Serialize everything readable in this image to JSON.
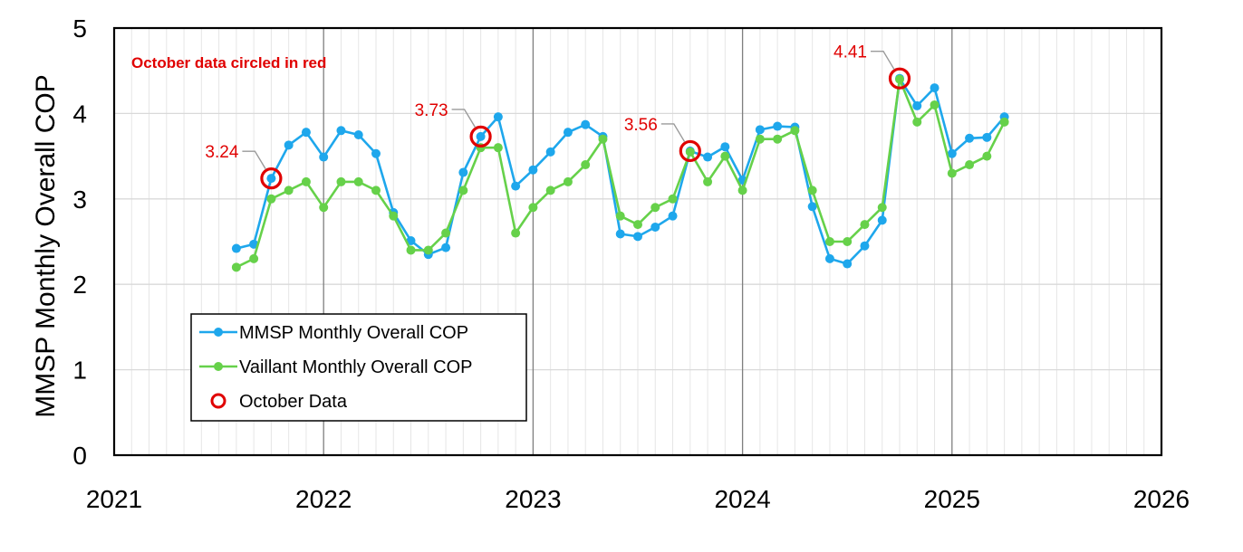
{
  "chart_data": {
    "type": "line",
    "ylabel": "MMSP Monthly Overall COP",
    "xlabel": "",
    "xlim": [
      2021,
      2026
    ],
    "ylim": [
      0,
      5
    ],
    "x_ticks": [
      "2021",
      "2022",
      "2023",
      "2024",
      "2025",
      "2026"
    ],
    "y_ticks": [
      "0",
      "1",
      "2",
      "3",
      "4",
      "5"
    ],
    "grid": "on",
    "legend_position": "bottom-left",
    "note": "October data circled in red",
    "colors": {
      "mmsp": "#1ea7ec",
      "vaillant": "#66d14a",
      "october": "#e00000"
    },
    "series": [
      {
        "name": "MMSP Monthly Overall COP",
        "points": [
          [
            "2021-08",
            2.42
          ],
          [
            "2021-09",
            2.47
          ],
          [
            "2021-10",
            3.24
          ],
          [
            "2021-11",
            3.63
          ],
          [
            "2021-12",
            3.78
          ],
          [
            "2022-01",
            3.49
          ],
          [
            "2022-02",
            3.8
          ],
          [
            "2022-03",
            3.75
          ],
          [
            "2022-04",
            3.53
          ],
          [
            "2022-05",
            2.84
          ],
          [
            "2022-06",
            2.51
          ],
          [
            "2022-07",
            2.35
          ],
          [
            "2022-08",
            2.43
          ],
          [
            "2022-09",
            3.31
          ],
          [
            "2022-10",
            3.73
          ],
          [
            "2022-11",
            3.96
          ],
          [
            "2022-12",
            3.15
          ],
          [
            "2023-01",
            3.34
          ],
          [
            "2023-02",
            3.55
          ],
          [
            "2023-03",
            3.78
          ],
          [
            "2023-04",
            3.87
          ],
          [
            "2023-05",
            3.73
          ],
          [
            "2023-06",
            2.59
          ],
          [
            "2023-07",
            2.56
          ],
          [
            "2023-08",
            2.67
          ],
          [
            "2023-09",
            2.8
          ],
          [
            "2023-10",
            3.56
          ],
          [
            "2023-11",
            3.49
          ],
          [
            "2023-12",
            3.61
          ],
          [
            "2024-01",
            3.22
          ],
          [
            "2024-02",
            3.81
          ],
          [
            "2024-03",
            3.85
          ],
          [
            "2024-04",
            3.84
          ],
          [
            "2024-05",
            2.91
          ],
          [
            "2024-06",
            2.3
          ],
          [
            "2024-07",
            2.24
          ],
          [
            "2024-08",
            2.45
          ],
          [
            "2024-09",
            2.75
          ],
          [
            "2024-10",
            4.41
          ],
          [
            "2024-11",
            4.09
          ],
          [
            "2024-12",
            4.3
          ],
          [
            "2025-01",
            3.53
          ],
          [
            "2025-02",
            3.71
          ],
          [
            "2025-03",
            3.72
          ],
          [
            "2025-04",
            3.96
          ]
        ]
      },
      {
        "name": "Vaillant Monthly Overall COP",
        "points": [
          [
            "2021-08",
            2.2
          ],
          [
            "2021-09",
            2.3
          ],
          [
            "2021-10",
            3.0
          ],
          [
            "2021-11",
            3.1
          ],
          [
            "2021-12",
            3.2
          ],
          [
            "2022-01",
            2.9
          ],
          [
            "2022-02",
            3.2
          ],
          [
            "2022-03",
            3.2
          ],
          [
            "2022-04",
            3.1
          ],
          [
            "2022-05",
            2.8
          ],
          [
            "2022-06",
            2.4
          ],
          [
            "2022-07",
            2.4
          ],
          [
            "2022-08",
            2.6
          ],
          [
            "2022-09",
            3.1
          ],
          [
            "2022-10",
            3.6
          ],
          [
            "2022-11",
            3.6
          ],
          [
            "2022-12",
            2.6
          ],
          [
            "2023-01",
            2.9
          ],
          [
            "2023-02",
            3.1
          ],
          [
            "2023-03",
            3.2
          ],
          [
            "2023-04",
            3.4
          ],
          [
            "2023-05",
            3.7
          ],
          [
            "2023-06",
            2.8
          ],
          [
            "2023-07",
            2.7
          ],
          [
            "2023-08",
            2.9
          ],
          [
            "2023-09",
            3.0
          ],
          [
            "2023-10",
            3.55
          ],
          [
            "2023-11",
            3.2
          ],
          [
            "2023-12",
            3.5
          ],
          [
            "2024-01",
            3.1
          ],
          [
            "2024-02",
            3.7
          ],
          [
            "2024-03",
            3.7
          ],
          [
            "2024-04",
            3.8
          ],
          [
            "2024-05",
            3.1
          ],
          [
            "2024-06",
            2.5
          ],
          [
            "2024-07",
            2.5
          ],
          [
            "2024-08",
            2.7
          ],
          [
            "2024-09",
            2.9
          ],
          [
            "2024-10",
            4.4
          ],
          [
            "2024-11",
            3.9
          ],
          [
            "2024-12",
            4.1
          ],
          [
            "2025-01",
            3.3
          ],
          [
            "2025-02",
            3.4
          ],
          [
            "2025-03",
            3.5
          ],
          [
            "2025-04",
            3.9
          ]
        ]
      },
      {
        "name": "October Data",
        "points": [
          [
            "2021-10",
            3.24
          ],
          [
            "2022-10",
            3.73
          ],
          [
            "2023-10",
            3.56
          ],
          [
            "2024-10",
            4.41
          ]
        ]
      }
    ],
    "annotations": [
      {
        "label": "3.24",
        "x": "2021-10",
        "y": 3.24
      },
      {
        "label": "3.73",
        "x": "2022-10",
        "y": 3.73
      },
      {
        "label": "3.56",
        "x": "2023-10",
        "y": 3.56
      },
      {
        "label": "4.41",
        "x": "2024-10",
        "y": 4.41
      }
    ]
  }
}
